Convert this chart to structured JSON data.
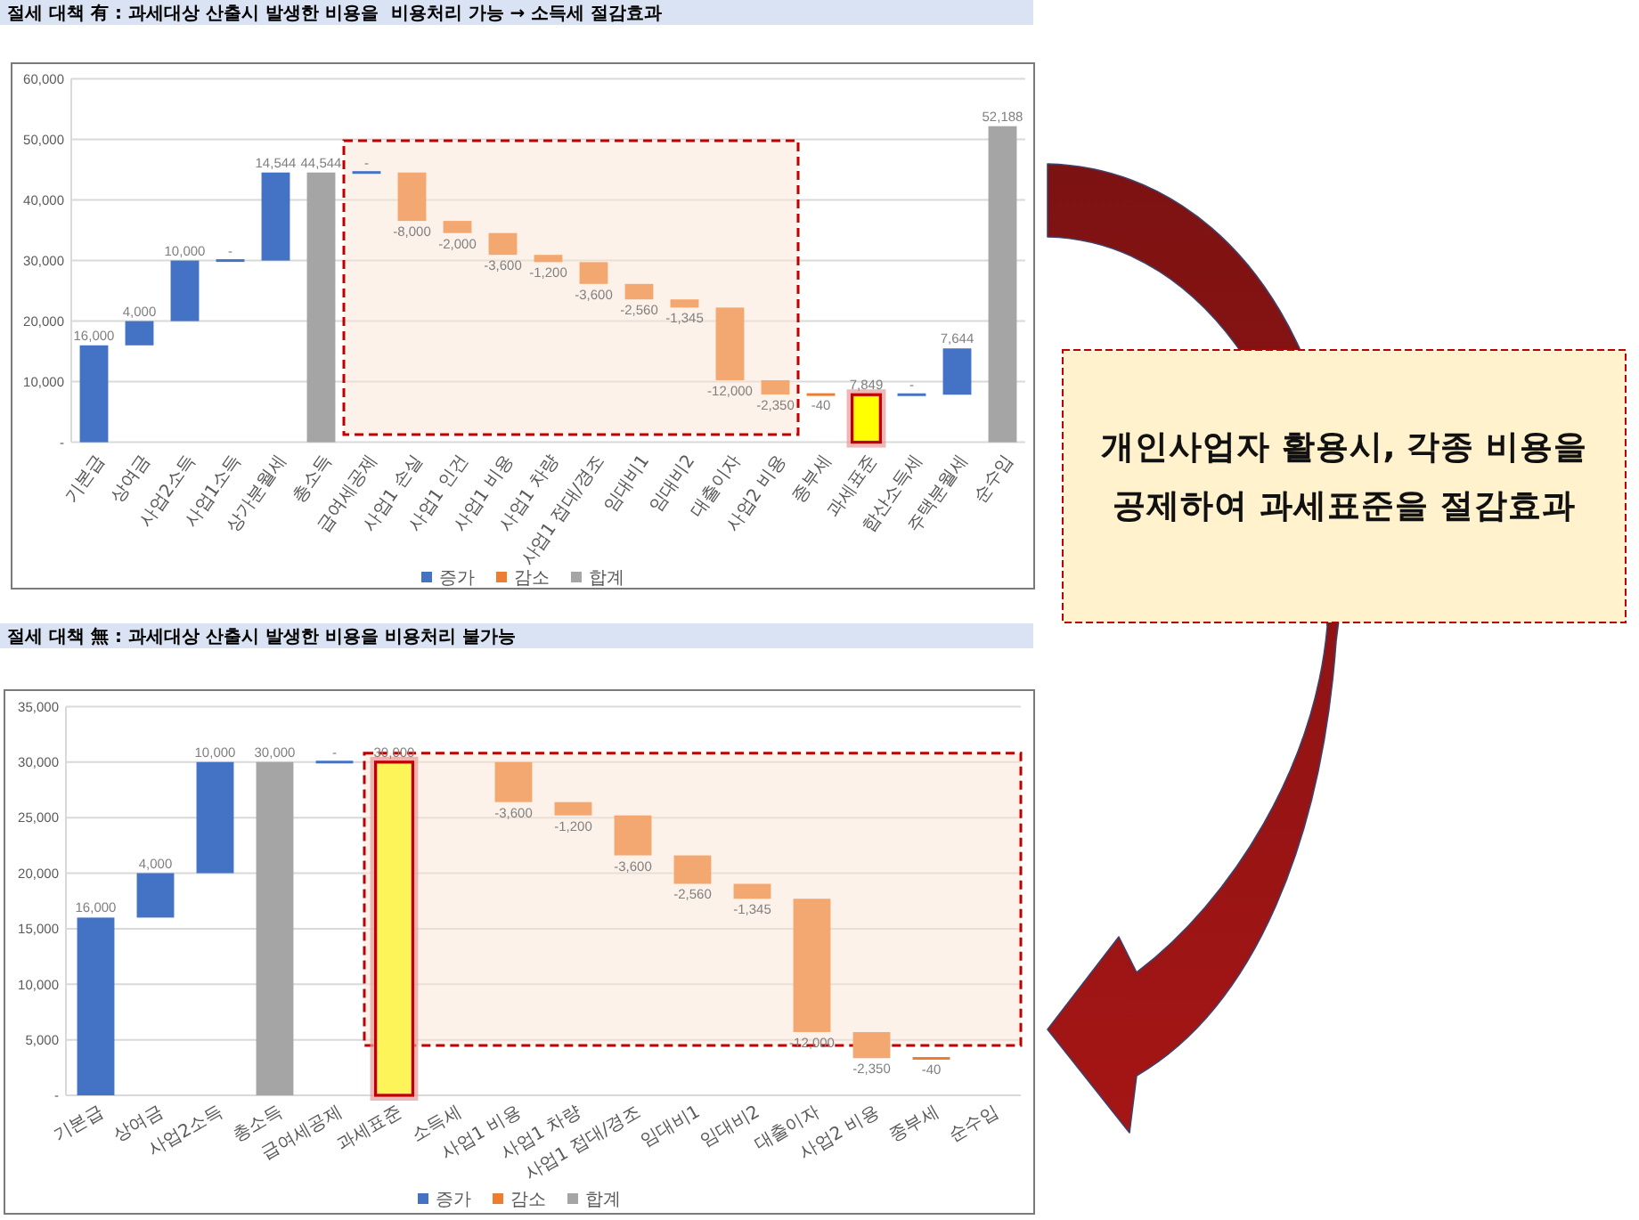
{
  "chart_data": [
    {
      "type": "bar",
      "title": "절세 대책 有 : 과세대상 산출시 발생한 비용을  비용처리 가능 → 소득세 절감효과",
      "categories": [
        "기본급",
        "상여금",
        "사업2소득",
        "사업1소득",
        "상가분월세",
        "총소득",
        "급여세공제",
        "사업1 손실",
        "사업1 인건",
        "사업1 비용",
        "사업1 차량",
        "사업1 접대/경조",
        "임대비1",
        "임대비2",
        "대출이자",
        "사업2 비용",
        "종부세",
        "과세표준",
        "합산소득세",
        "주택분월세",
        "순수입"
      ],
      "series": [
        {
          "name": "증가",
          "color": "#4472c4",
          "values": [
            16000,
            4000,
            10000,
            0,
            14544,
            null,
            0,
            null,
            null,
            null,
            null,
            null,
            null,
            null,
            null,
            null,
            null,
            null,
            0,
            7644,
            null
          ],
          "base": [
            0,
            16000,
            20000,
            30000,
            30000,
            null,
            44544,
            null,
            null,
            null,
            null,
            null,
            null,
            null,
            null,
            null,
            null,
            null,
            7849,
            7849,
            null
          ],
          "value_labels": [
            "16,000",
            "4,000",
            "10,000",
            "-",
            "14,544",
            null,
            "-",
            null,
            null,
            null,
            null,
            null,
            null,
            null,
            null,
            null,
            null,
            null,
            "-",
            "7,644",
            null
          ]
        },
        {
          "name": "감소",
          "color": "#ed7d31",
          "values": [
            null,
            null,
            null,
            null,
            null,
            null,
            null,
            -8000,
            -2000,
            -3600,
            -1200,
            -3600,
            -2560,
            -1345,
            -12000,
            -2350,
            -40,
            null,
            null,
            null,
            null
          ],
          "base": [
            null,
            null,
            null,
            null,
            null,
            null,
            null,
            44544,
            36544,
            34544,
            30944,
            29744,
            26144,
            23584,
            22239,
            10239,
            7889,
            null,
            null,
            null,
            null
          ],
          "value_labels": [
            null,
            null,
            null,
            null,
            null,
            null,
            null,
            "-8,000",
            "-2,000",
            "-3,600",
            "-1,200",
            "-3,600",
            "-2,560",
            "-1,345",
            "-12,000",
            "-2,350",
            "-40",
            null,
            null,
            null,
            null
          ],
          "colors": [
            null,
            null,
            null,
            null,
            null,
            null,
            null,
            "#f3a871",
            "#f3a871",
            "#f3a871",
            "#f3a871",
            "#f3a871",
            "#f3a871",
            "#f3a871",
            "#f3a871",
            "#f3a871",
            "#ed7d31",
            null,
            null,
            null,
            null
          ]
        },
        {
          "name": "합계",
          "color": "#a5a5a5",
          "values": [
            null,
            null,
            null,
            null,
            null,
            44544,
            null,
            null,
            null,
            null,
            null,
            null,
            null,
            null,
            null,
            null,
            null,
            7849,
            null,
            null,
            52188
          ],
          "base": [
            null,
            null,
            null,
            null,
            null,
            0,
            null,
            null,
            null,
            null,
            null,
            null,
            null,
            null,
            null,
            null,
            null,
            0,
            null,
            null,
            0
          ],
          "value_labels": [
            null,
            null,
            null,
            null,
            null,
            "44,544",
            null,
            null,
            null,
            null,
            null,
            null,
            null,
            null,
            null,
            null,
            null,
            "7,849",
            null,
            null,
            "52,188"
          ],
          "colors": [
            null,
            null,
            null,
            null,
            null,
            "#a5a5a5",
            null,
            null,
            null,
            null,
            null,
            null,
            null,
            null,
            null,
            null,
            null,
            "#ffff00",
            null,
            null,
            "#a5a5a5"
          ]
        }
      ],
      "ylim": [
        0,
        60000
      ],
      "yticks": [
        {
          "value": 0,
          "label": "-"
        },
        {
          "value": 10000,
          "label": "10,000"
        },
        {
          "value": 20000,
          "label": "20,000"
        },
        {
          "value": 30000,
          "label": "30,000"
        },
        {
          "value": 40000,
          "label": "40,000"
        },
        {
          "value": 50000,
          "label": "50,000"
        },
        {
          "value": 60000,
          "label": "60,000"
        }
      ],
      "grid": "y",
      "legend": "bottom"
    },
    {
      "type": "bar",
      "title": "절세 대책 無 : 과세대상 산출시 발생한 비용을 비용처리 불가능",
      "categories": [
        "기본급",
        "상여금",
        "사업2소득",
        "총소득",
        "급여세공제",
        "과세표준",
        "소득세",
        "사업1 비용",
        "사업1 차량",
        "사업1 접대/경조",
        "임대비1",
        "임대비2",
        "대출이자",
        "사업2 비용",
        "종부세",
        "순수입"
      ],
      "series": [
        {
          "name": "증가",
          "color": "#4472c4",
          "values": [
            16000,
            4000,
            10000,
            null,
            0,
            null,
            null,
            null,
            null,
            null,
            null,
            null,
            null,
            null,
            null,
            null
          ],
          "base": [
            0,
            16000,
            20000,
            null,
            30000,
            null,
            null,
            null,
            null,
            null,
            null,
            null,
            null,
            null,
            null,
            null
          ],
          "value_labels": [
            "16,000",
            "4,000",
            "10,000",
            null,
            "-",
            null,
            null,
            null,
            null,
            null,
            null,
            null,
            null,
            null,
            null,
            null
          ]
        },
        {
          "name": "감소",
          "color": "#ed7d31",
          "values": [
            null,
            null,
            null,
            null,
            null,
            null,
            null,
            -3600,
            -1200,
            -3600,
            -2560,
            -1345,
            -12000,
            -2350,
            -40,
            null
          ],
          "base": [
            null,
            null,
            null,
            null,
            null,
            null,
            null,
            30000,
            26400,
            25200,
            21600,
            19040,
            17695,
            5695,
            3345,
            null
          ],
          "value_labels": [
            null,
            null,
            null,
            null,
            null,
            null,
            null,
            "-3,600",
            "-1,200",
            "-3,600",
            "-2,560",
            "-1,345",
            "-12,000",
            "-2,350",
            "-40",
            null
          ],
          "colors": [
            null,
            null,
            null,
            null,
            null,
            null,
            null,
            "#f3a871",
            "#f3a871",
            "#f3a871",
            "#f3a871",
            "#f3a871",
            "#f3a871",
            "#f3a871",
            "#ed7d31",
            null
          ]
        },
        {
          "name": "합계",
          "color": "#a5a5a5",
          "values": [
            null,
            null,
            null,
            30000,
            null,
            30000,
            null,
            null,
            null,
            null,
            null,
            null,
            null,
            null,
            null,
            null
          ],
          "base": [
            null,
            null,
            null,
            0,
            null,
            0,
            null,
            null,
            null,
            null,
            null,
            null,
            null,
            null,
            null,
            null
          ],
          "value_labels": [
            null,
            null,
            null,
            "30,000",
            null,
            "30,000",
            null,
            null,
            null,
            null,
            null,
            null,
            null,
            null,
            null,
            null
          ],
          "colors": [
            null,
            null,
            null,
            "#a5a5a5",
            null,
            "#fdf45a",
            null,
            null,
            null,
            null,
            null,
            null,
            null,
            null,
            null,
            null
          ]
        }
      ],
      "ylim": [
        0,
        35000
      ],
      "yticks": [
        {
          "value": 0,
          "label": "-"
        },
        {
          "value": 5000,
          "label": "5,000"
        },
        {
          "value": 10000,
          "label": "10,000"
        },
        {
          "value": 15000,
          "label": "15,000"
        },
        {
          "value": 20000,
          "label": "20,000"
        },
        {
          "value": 25000,
          "label": "25,000"
        },
        {
          "value": 30000,
          "label": "30,000"
        },
        {
          "value": 35000,
          "label": "35,000"
        }
      ],
      "grid": "y",
      "legend": "bottom"
    },
    {
      "type": "other",
      "annotations": [
        "개인사업자 활용시, 각종 비용을 공제하여 과세표준을 절감효과"
      ]
    }
  ]
}
